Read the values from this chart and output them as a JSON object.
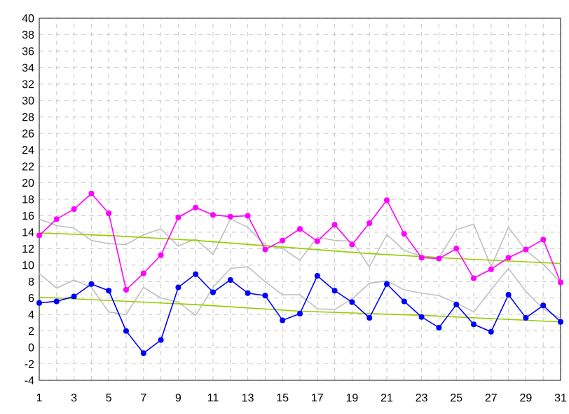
{
  "chart_data": {
    "type": "line",
    "x": [
      1,
      2,
      3,
      4,
      5,
      6,
      7,
      8,
      9,
      10,
      11,
      12,
      13,
      14,
      15,
      16,
      17,
      18,
      19,
      20,
      21,
      22,
      23,
      24,
      25,
      26,
      27,
      28,
      29,
      30,
      31
    ],
    "xlim": [
      1,
      31
    ],
    "xticks": [
      1,
      {
        "value": 2,
        "label": null
      },
      3,
      {
        "value": 4,
        "label": null
      },
      5,
      {
        "value": 6,
        "label": null
      },
      7,
      {
        "value": 8,
        "label": null
      },
      9,
      {
        "value": 10,
        "label": null
      },
      11,
      {
        "value": 12,
        "label": null
      },
      13,
      {
        "value": 14,
        "label": null
      },
      15,
      {
        "value": 16,
        "label": null
      },
      17,
      {
        "value": 18,
        "label": null
      },
      19,
      {
        "value": 20,
        "label": null
      },
      21,
      {
        "value": 22,
        "label": null
      },
      23,
      {
        "value": 24,
        "label": null
      },
      25,
      {
        "value": 26,
        "label": null
      },
      27,
      {
        "value": 28,
        "label": null
      },
      29,
      {
        "value": 30,
        "label": null
      },
      31
    ],
    "ylim": [
      -4,
      40
    ],
    "yticks": [
      -4,
      -2,
      0,
      2,
      4,
      6,
      8,
      10,
      12,
      14,
      16,
      18,
      20,
      22,
      24,
      26,
      28,
      30,
      32,
      34,
      36,
      38,
      40
    ],
    "grid": true,
    "series": [
      {
        "color": "#c0c0c0",
        "marker": "none",
        "values": [
          15.6,
          14.8,
          14.5,
          13.0,
          12.6,
          12.5,
          13.7,
          14.4,
          12.3,
          13.2,
          11.3,
          15.6,
          14.6,
          12.4,
          12.0,
          10.6,
          13.4,
          13.0,
          12.9,
          9.8,
          13.7,
          11.8,
          11.1,
          10.9,
          14.3,
          15.0,
          9.8,
          14.6,
          11.8,
          10.1,
          7.9
        ]
      },
      {
        "color": "#c0c0c0",
        "marker": "none",
        "values": [
          9.0,
          7.2,
          8.2,
          7.3,
          4.3,
          4.0,
          7.3,
          6.0,
          5.5,
          3.9,
          7.3,
          9.6,
          9.8,
          8.0,
          6.4,
          6.4,
          4.7,
          4.6,
          5.9,
          7.8,
          8.1,
          7.0,
          6.6,
          6.3,
          5.4,
          4.3,
          7.0,
          9.6,
          6.8,
          4.7,
          3.5
        ]
      },
      {
        "color": "#99cc00",
        "marker": "none",
        "x": [
          1,
          5,
          10,
          15,
          20,
          25,
          31
        ],
        "values": [
          13.9,
          13.6,
          13.0,
          12.2,
          11.4,
          10.8,
          10.2
        ]
      },
      {
        "color": "#99cc00",
        "marker": "none",
        "x": [
          1,
          10,
          16,
          23,
          31
        ],
        "values": [
          6.1,
          5.2,
          4.4,
          3.9,
          3.1
        ]
      },
      {
        "color": "#ff00ff",
        "marker": "circle",
        "values": [
          13.6,
          15.6,
          16.8,
          18.7,
          16.3,
          7.0,
          9.0,
          11.2,
          15.8,
          17.0,
          16.1,
          15.9,
          16.0,
          11.9,
          13.0,
          14.4,
          12.9,
          14.9,
          12.5,
          15.1,
          17.9,
          13.8,
          10.9,
          10.8,
          12.0,
          8.4,
          9.5,
          10.9,
          11.9,
          13.1,
          7.9
        ]
      },
      {
        "color": "#0000ff",
        "marker": "circle",
        "values": [
          5.4,
          5.6,
          6.2,
          7.7,
          6.9,
          2.0,
          -0.7,
          0.9,
          7.3,
          8.9,
          6.7,
          8.2,
          6.6,
          6.3,
          3.3,
          4.1,
          8.7,
          6.9,
          5.5,
          3.6,
          7.7,
          5.6,
          3.7,
          2.4,
          5.2,
          2.8,
          1.9,
          6.4,
          3.6,
          5.1,
          3.1
        ]
      }
    ]
  }
}
